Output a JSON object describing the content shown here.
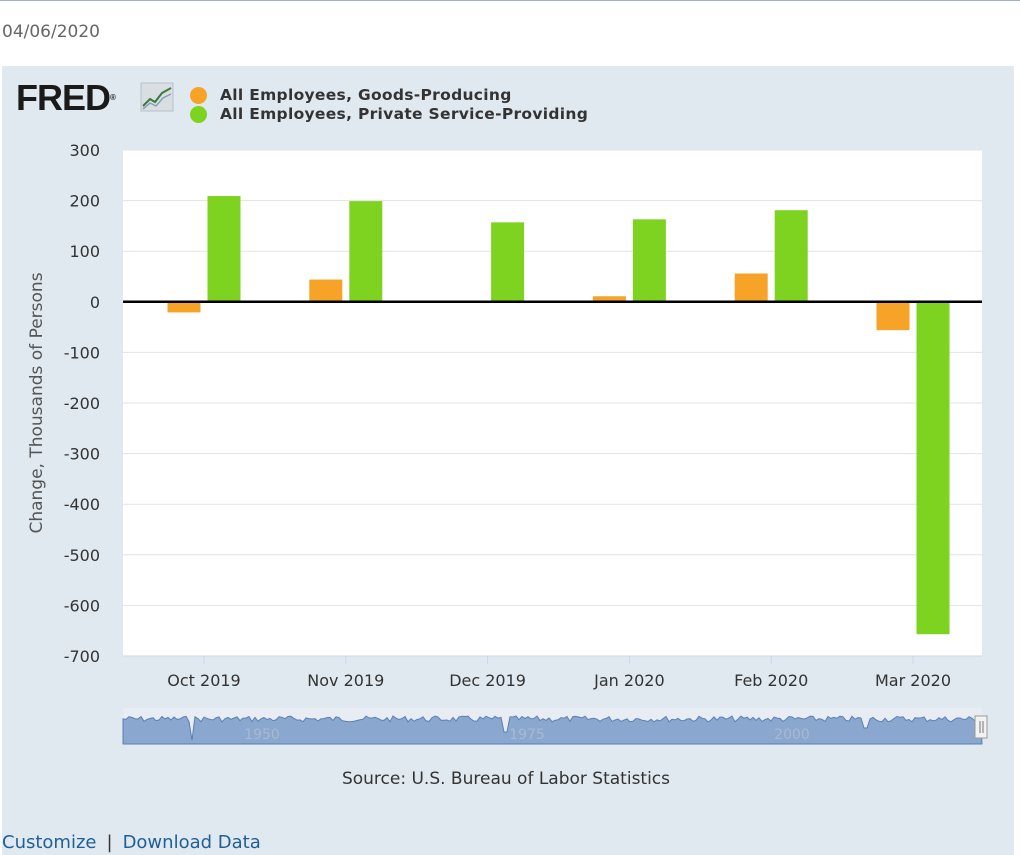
{
  "date": "04/06/2020",
  "logo": {
    "text": "FRED",
    "mark": "®",
    "icon": "line-chart-icon"
  },
  "legend": [
    {
      "label": "All Employees, Goods-Producing",
      "color": "#f7a327"
    },
    {
      "label": "All Employees, Private Service-Providing",
      "color": "#7ed321"
    }
  ],
  "chart_data": {
    "type": "bar",
    "title": "",
    "xlabel": "",
    "ylabel": "Change, Thousands of Persons",
    "ylim": [
      -700,
      300
    ],
    "yticks": [
      300,
      200,
      100,
      0,
      -100,
      -200,
      -300,
      -400,
      -500,
      -600,
      -700
    ],
    "categories": [
      "Oct 2019",
      "Nov 2019",
      "Dec 2019",
      "Jan 2020",
      "Feb 2020",
      "Mar 2020"
    ],
    "series": [
      {
        "name": "All Employees, Goods-Producing",
        "values": [
          -21,
          44,
          0,
          11,
          56,
          -56
        ]
      },
      {
        "name": "All Employees, Private Service-Providing",
        "values": [
          209,
          199,
          157,
          163,
          181,
          -657
        ]
      }
    ],
    "grid": true,
    "legend_position": "top-left"
  },
  "navigator": {
    "labels": [
      "1950",
      "1975",
      "2000"
    ]
  },
  "source": "Source: U.S. Bureau of Labor Statistics",
  "links": {
    "customize": "Customize",
    "separator": "|",
    "download": "Download Data"
  }
}
